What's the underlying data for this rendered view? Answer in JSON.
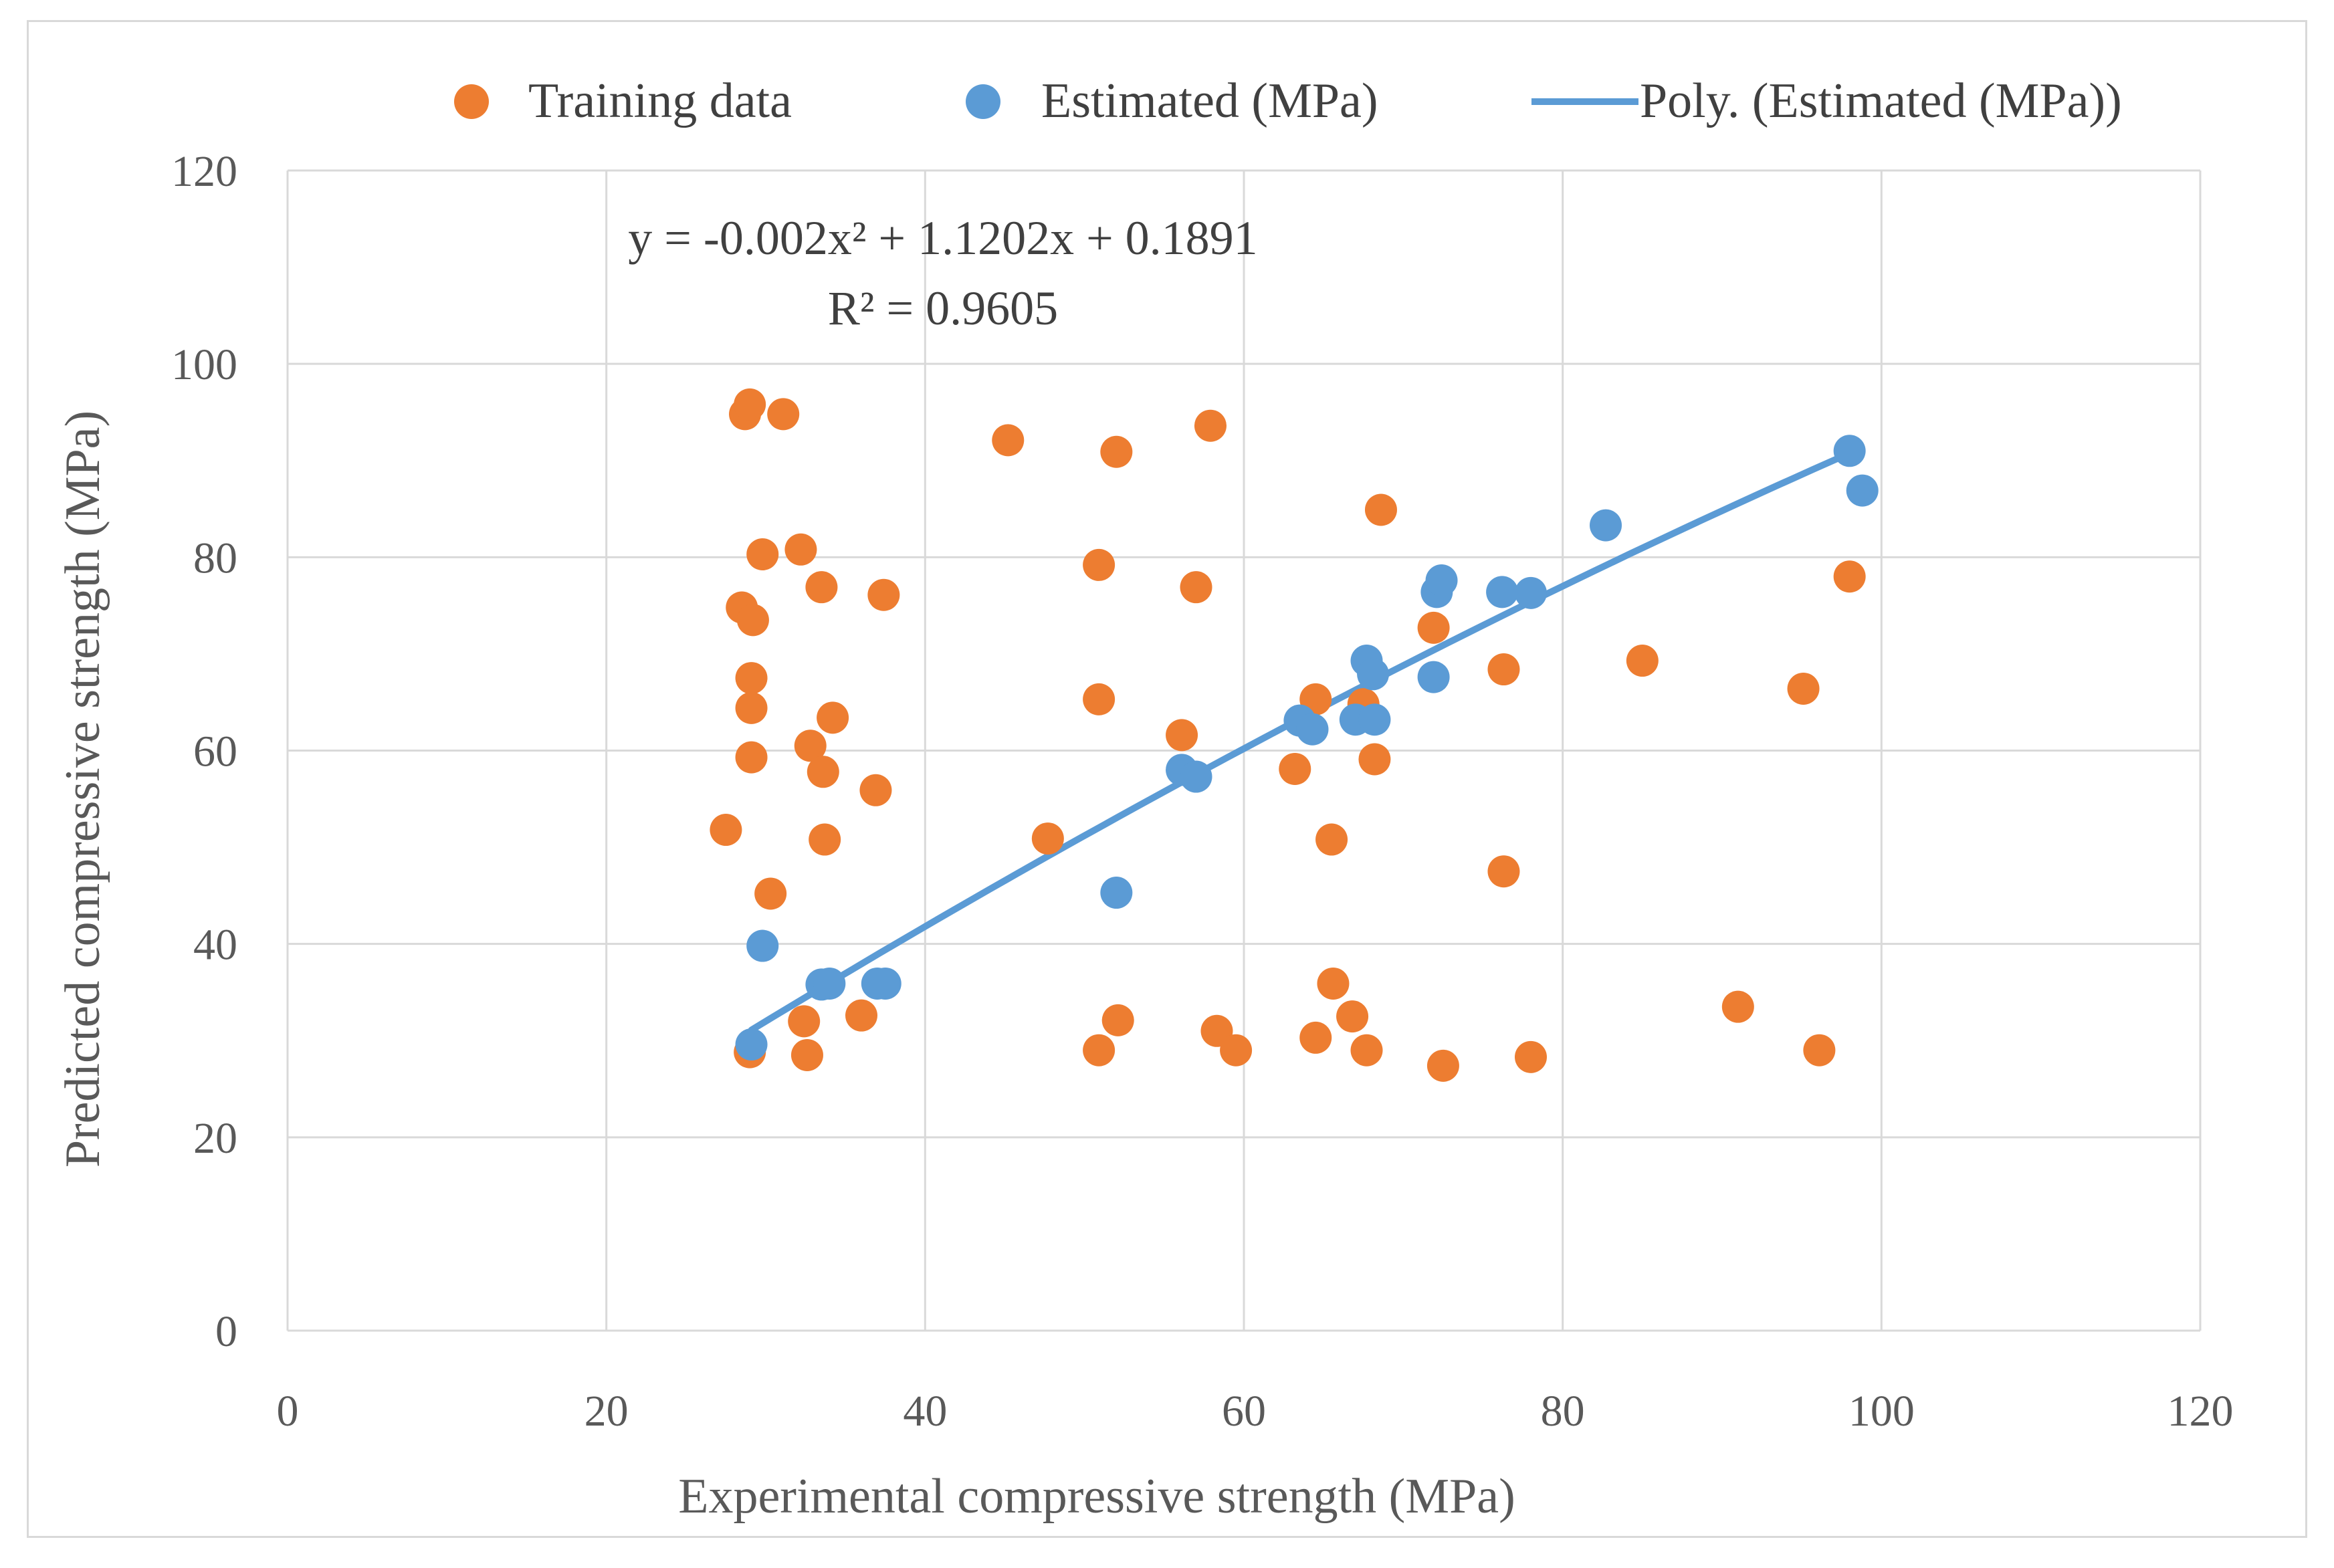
{
  "chart_data": {
    "type": "scatter",
    "xlabel": "Experimental compressive strength (MPa)",
    "ylabel": "Predicted compressive strength (MPa)",
    "xlim": [
      0,
      120
    ],
    "ylim": [
      0,
      120
    ],
    "xticks": [
      0,
      20,
      40,
      60,
      80,
      100,
      120
    ],
    "yticks": [
      0,
      20,
      40,
      60,
      80,
      100,
      120
    ],
    "grid": true,
    "legend_position": "top",
    "series": [
      {
        "name": "Training data",
        "color": "#ed7d31",
        "points": [
          [
            27.5,
            51.8
          ],
          [
            28.5,
            74.8
          ],
          [
            28.7,
            94.8
          ],
          [
            29.0,
            95.8
          ],
          [
            29.1,
            67.5
          ],
          [
            29.1,
            64.4
          ],
          [
            29.1,
            59.3
          ],
          [
            29.2,
            73.5
          ],
          [
            29.0,
            28.8
          ],
          [
            29.8,
            80.3
          ],
          [
            30.3,
            45.2
          ],
          [
            31.1,
            94.8
          ],
          [
            32.2,
            80.8
          ],
          [
            32.4,
            32.0
          ],
          [
            32.6,
            28.5
          ],
          [
            32.8,
            60.5
          ],
          [
            33.5,
            76.9
          ],
          [
            33.6,
            57.8
          ],
          [
            33.7,
            50.8
          ],
          [
            34.2,
            63.4
          ],
          [
            36.0,
            32.6
          ],
          [
            36.9,
            55.9
          ],
          [
            37.4,
            76.1
          ],
          [
            45.2,
            92.1
          ],
          [
            47.7,
            50.9
          ],
          [
            50.9,
            79.2
          ],
          [
            50.9,
            65.3
          ],
          [
            50.9,
            29.0
          ],
          [
            52.0,
            90.9
          ],
          [
            52.1,
            32.1
          ],
          [
            56.1,
            61.6
          ],
          [
            57.0,
            76.9
          ],
          [
            57.9,
            93.6
          ],
          [
            58.3,
            31.0
          ],
          [
            59.5,
            29.0
          ],
          [
            63.2,
            58.1
          ],
          [
            64.5,
            65.3
          ],
          [
            64.5,
            30.3
          ],
          [
            65.5,
            50.8
          ],
          [
            65.6,
            35.9
          ],
          [
            66.8,
            32.5
          ],
          [
            67.5,
            64.8
          ],
          [
            67.7,
            29.0
          ],
          [
            68.2,
            59.1
          ],
          [
            68.6,
            84.9
          ],
          [
            71.9,
            72.7
          ],
          [
            72.5,
            27.4
          ],
          [
            76.3,
            68.4
          ],
          [
            76.3,
            47.5
          ],
          [
            78.0,
            28.3
          ],
          [
            85.0,
            69.3
          ],
          [
            91.0,
            33.5
          ],
          [
            95.1,
            66.4
          ],
          [
            96.1,
            29.0
          ],
          [
            98.0,
            78.0
          ]
        ]
      },
      {
        "name": "Estimated (MPa)",
        "color": "#5b9bd5",
        "points": [
          [
            29.1,
            29.6
          ],
          [
            29.8,
            39.8
          ],
          [
            33.5,
            35.8
          ],
          [
            34.0,
            35.9
          ],
          [
            37.0,
            35.9
          ],
          [
            37.5,
            35.9
          ],
          [
            52.0,
            45.3
          ],
          [
            56.1,
            58.0
          ],
          [
            57.0,
            57.3
          ],
          [
            63.5,
            63.1
          ],
          [
            64.3,
            62.2
          ],
          [
            67.0,
            63.2
          ],
          [
            67.7,
            69.3
          ],
          [
            68.2,
            63.2
          ],
          [
            68.1,
            67.9
          ],
          [
            71.9,
            67.6
          ],
          [
            72.1,
            76.4
          ],
          [
            72.4,
            77.6
          ],
          [
            76.2,
            76.4
          ],
          [
            78.0,
            76.3
          ],
          [
            82.7,
            83.3
          ],
          [
            98.0,
            91.0
          ],
          [
            98.8,
            86.9
          ]
        ]
      }
    ],
    "trendline": {
      "name": "Poly. (Estimated (MPa))",
      "color": "#5b9bd5",
      "type": "polynomial",
      "order": 2,
      "coefficients": [
        -0.002,
        1.1202,
        0.1891
      ],
      "x_range": [
        29.1,
        98.0
      ],
      "equation": "y = -0.002x² + 1.1202x + 0.1891",
      "r_squared_label": "R² = 0.9605"
    }
  }
}
